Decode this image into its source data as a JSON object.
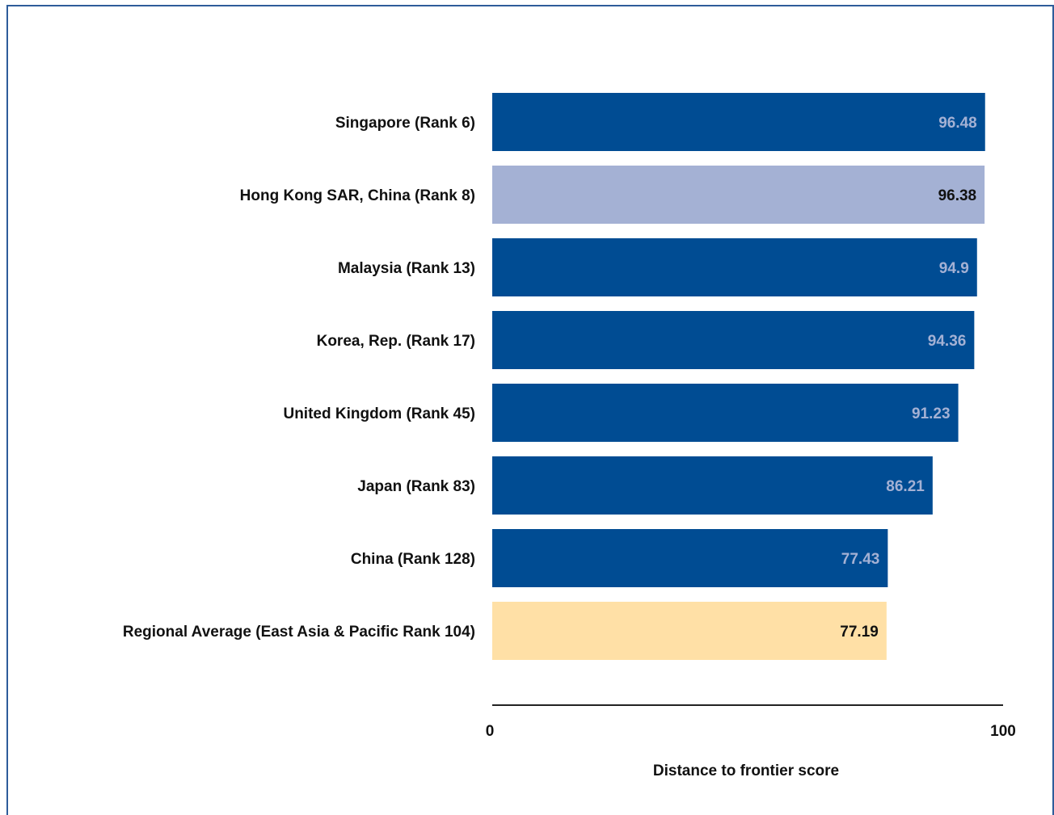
{
  "chart_data": {
    "type": "bar",
    "orientation": "horizontal",
    "categories": [
      "Singapore (Rank 6)",
      "Hong Kong SAR, China (Rank 8)",
      "Malaysia (Rank 13)",
      "Korea, Rep. (Rank 17)",
      "United Kingdom (Rank 45)",
      "Japan (Rank 83)",
      "China (Rank 128)",
      "Regional Average (East Asia & Pacific Rank 104)"
    ],
    "values": [
      96.48,
      96.38,
      94.9,
      94.36,
      91.23,
      86.21,
      77.43,
      77.19
    ],
    "value_labels": [
      "96.48",
      "96.38",
      "94.9",
      "94.36",
      "91.23",
      "86.21",
      "77.43",
      "77.19"
    ],
    "bar_colors": [
      "#004c93",
      "#a4b1d4",
      "#004c93",
      "#004c93",
      "#004c93",
      "#004c93",
      "#004c93",
      "#ffe0a6"
    ],
    "label_colors": [
      "#a4b1d4",
      "#111111",
      "#a4b1d4",
      "#a4b1d4",
      "#a4b1d4",
      "#a4b1d4",
      "#a4b1d4",
      "#111111"
    ],
    "xlabel": "Distance to frontier score",
    "xlim": [
      0,
      100
    ],
    "xticks": [
      "0",
      "100"
    ],
    "grid": false,
    "legend": "none"
  }
}
